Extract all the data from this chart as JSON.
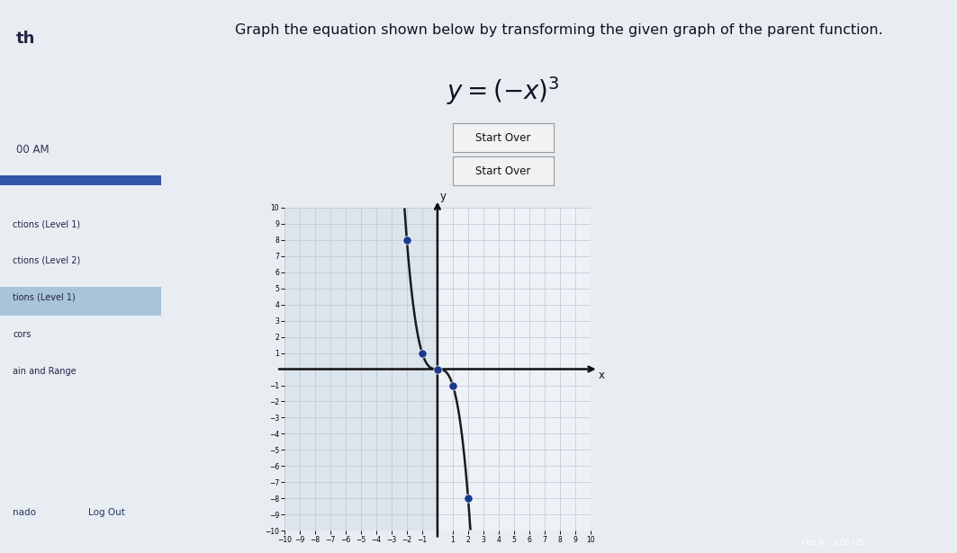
{
  "title": "Graph the equation shown below by transforming the given graph of the parent function.",
  "equation_latex": "$y = (-x)^3$",
  "bg_main": "#e8edf2",
  "bg_sidebar": "#d0dce6",
  "bg_highlight": "#a8c4da",
  "bg_graph_left": "#dce4ec",
  "bg_graph_right": "#eef2f6",
  "xlim": [
    -10,
    10
  ],
  "ylim": [
    -10,
    10
  ],
  "grid_color": "#b8c8d8",
  "grid_lw": 0.5,
  "axis_color": "#111111",
  "axis_lw": 1.8,
  "curve_color": "#1a1a1a",
  "curve_lw": 1.8,
  "dot_color": "#1a3a8f",
  "dot_size": 45,
  "dot_points": [
    [
      -2,
      8
    ],
    [
      -1,
      1
    ],
    [
      0,
      0
    ],
    [
      1,
      -1
    ],
    [
      2,
      -8
    ]
  ],
  "start_over_bg": "#f2f2f2",
  "start_over_border": "#999999",
  "sidebar_items": [
    "ctions (Level 1)",
    "ctions (Level 2)",
    "tions (Level 1)",
    "cors",
    "ain and Range"
  ],
  "sidebar_highlight_idx": 2,
  "header_left": "th",
  "time_text": "00 AM",
  "footer_left": "nado",
  "footer_right": "Log Out",
  "bottom_taskbar_color": "#1a1a2e",
  "bottom_text": "Oct 8   3:06 US",
  "progress_bar_color": "#3355aa"
}
